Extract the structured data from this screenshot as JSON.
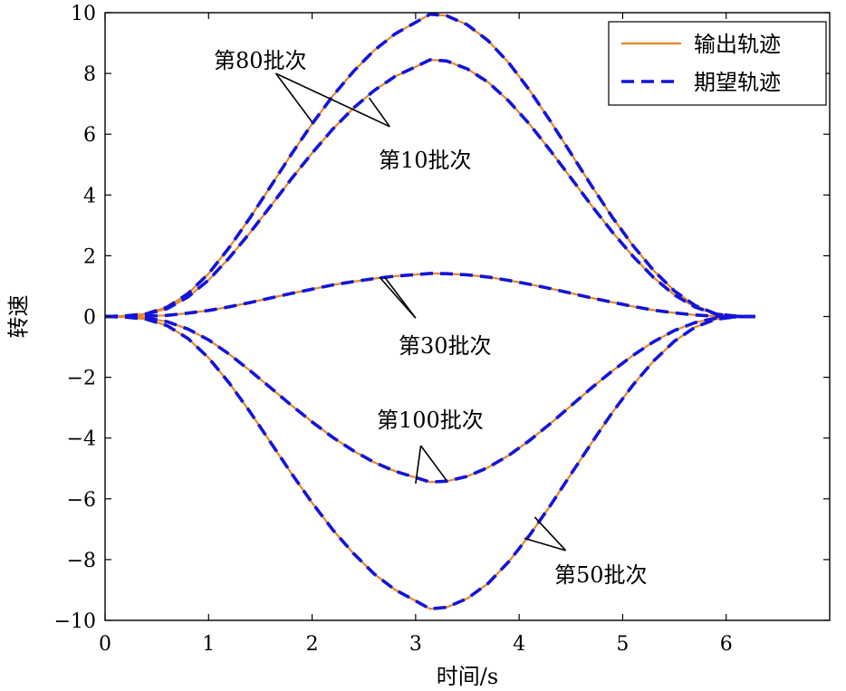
{
  "chart_data": {
    "type": "line",
    "title": "",
    "xlabel": "时间/s",
    "ylabel": "转速",
    "xlim": [
      0,
      7
    ],
    "ylim": [
      -10,
      10
    ],
    "xticks": [
      0,
      1,
      2,
      3,
      4,
      5,
      6
    ],
    "yticks": [
      -10,
      -8,
      -6,
      -4,
      -2,
      0,
      2,
      4,
      6,
      8,
      10
    ],
    "ytick_labels": [
      "−10",
      "−8",
      "−6",
      "−4",
      "−2",
      "0",
      "2",
      "4",
      "6",
      "8",
      "10"
    ],
    "grid": false,
    "legend_position": "top-right",
    "legend": [
      {
        "label": "输出轨迹",
        "style": "solid",
        "color": "#E8862A"
      },
      {
        "label": "期望轨迹",
        "style": "dashed",
        "color": "#1414D8"
      }
    ],
    "series_x": [
      0,
      0.2,
      0.4,
      0.6,
      0.8,
      1.0,
      1.2,
      1.4,
      1.6,
      1.8,
      2.0,
      2.2,
      2.4,
      2.6,
      2.8,
      3.0,
      3.14,
      3.3,
      3.5,
      3.7,
      3.9,
      4.1,
      4.3,
      4.5,
      4.7,
      4.9,
      5.1,
      5.3,
      5.5,
      5.7,
      5.9,
      6.1,
      6.28
    ],
    "series": [
      {
        "batch": "第80批次",
        "peak": 9.95,
        "y": [
          0,
          0.02,
          0.09,
          0.31,
          0.75,
          1.41,
          2.27,
          3.25,
          4.29,
          5.34,
          6.34,
          7.26,
          8.07,
          8.76,
          9.3,
          9.68,
          9.95,
          9.9,
          9.6,
          9.08,
          8.35,
          7.45,
          6.44,
          5.37,
          4.3,
          3.27,
          2.33,
          1.51,
          0.84,
          0.36,
          0.09,
          0.01,
          0
        ]
      },
      {
        "batch": "第10批次",
        "peak": 8.45,
        "y": [
          0,
          0.02,
          0.08,
          0.26,
          0.64,
          1.2,
          1.93,
          2.76,
          3.64,
          4.53,
          5.38,
          6.17,
          6.86,
          7.44,
          7.9,
          8.22,
          8.45,
          8.41,
          8.15,
          7.71,
          7.09,
          6.33,
          5.47,
          4.56,
          3.65,
          2.78,
          1.98,
          1.28,
          0.71,
          0.31,
          0.08,
          0.01,
          0
        ]
      },
      {
        "batch": "第30批次",
        "peak": 1.42,
        "y": [
          0,
          0.0,
          0.01,
          0.04,
          0.11,
          0.2,
          0.32,
          0.46,
          0.61,
          0.76,
          0.9,
          1.04,
          1.15,
          1.25,
          1.33,
          1.38,
          1.42,
          1.41,
          1.37,
          1.3,
          1.19,
          1.06,
          0.92,
          0.77,
          0.61,
          0.47,
          0.33,
          0.21,
          0.12,
          0.05,
          0.01,
          0.0,
          0
        ]
      },
      {
        "batch": "第100批次",
        "peak": -5.45,
        "y": [
          0,
          -0.01,
          -0.05,
          -0.17,
          -0.41,
          -0.77,
          -1.24,
          -1.78,
          -2.35,
          -2.92,
          -3.47,
          -3.98,
          -4.42,
          -4.8,
          -5.09,
          -5.3,
          -5.45,
          -5.42,
          -5.26,
          -4.97,
          -4.57,
          -4.08,
          -3.53,
          -2.94,
          -2.35,
          -1.79,
          -1.28,
          -0.83,
          -0.46,
          -0.2,
          -0.05,
          -0.01,
          0
        ]
      },
      {
        "batch": "第50批次",
        "peak": -9.62,
        "y": [
          0,
          -0.02,
          -0.09,
          -0.3,
          -0.72,
          -1.36,
          -2.19,
          -3.14,
          -4.15,
          -5.16,
          -6.13,
          -7.02,
          -7.8,
          -8.47,
          -8.99,
          -9.36,
          -9.62,
          -9.57,
          -9.28,
          -8.78,
          -8.07,
          -7.2,
          -6.23,
          -5.19,
          -4.16,
          -3.16,
          -2.25,
          -1.46,
          -0.81,
          -0.35,
          -0.09,
          -0.01,
          0
        ]
      }
    ],
    "annotations": [
      {
        "text": "第80批次",
        "pointer_from": [
          1.65,
          8.0
        ],
        "pointer_to": [
          [
            2.0,
            6.4
          ],
          [
            2.75,
            6.25
          ]
        ]
      },
      {
        "text": "第10批次",
        "pointer_from": [
          2.75,
          6.25
        ],
        "pointer_to": [
          [
            2.55,
            7.2
          ]
        ]
      },
      {
        "text": "第30批次",
        "pointer_from": [
          3.0,
          -0.05
        ],
        "pointer_to": [
          [
            2.65,
            1.3
          ],
          [
            2.7,
            1.3
          ]
        ]
      },
      {
        "text": "第100批次",
        "pointer_from": [
          3.05,
          -4.25
        ],
        "pointer_to": [
          [
            3.0,
            -5.5
          ],
          [
            3.3,
            -5.4
          ]
        ]
      },
      {
        "text": "第50批次",
        "pointer_from": [
          4.45,
          -7.7
        ],
        "pointer_to": [
          [
            4.15,
            -6.6
          ],
          [
            4.05,
            -7.3
          ]
        ]
      }
    ]
  }
}
